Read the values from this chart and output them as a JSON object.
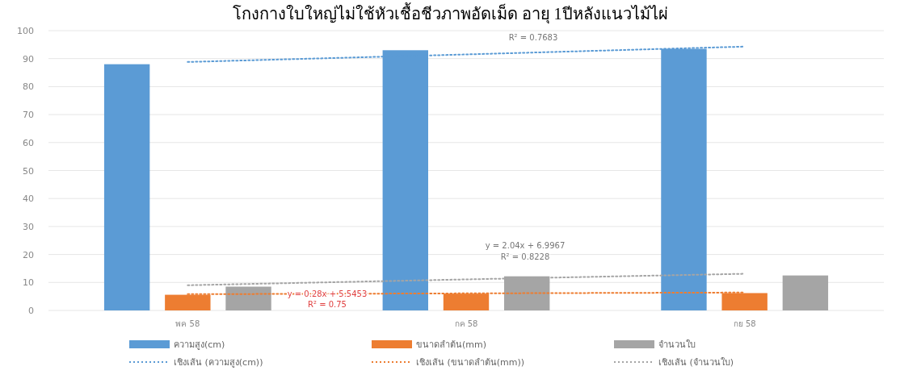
{
  "chart_data": {
    "type": "bar",
    "title": "โกงกางใบใหญ่ไม่ใช้หัวเชื้อชีวภาพอัดเม็ด อายุ 1ปีหลังแนวไม้ไผ่",
    "categories": [
      "พค 58",
      "กค 58",
      "กย 58"
    ],
    "series": [
      {
        "name": "ความสูง(cm)",
        "color": "#5b9bd5",
        "values": [
          88,
          93,
          93.5
        ]
      },
      {
        "name": "ขนาดลำต้น(mm)",
        "color": "#ed7d31",
        "values": [
          5.6,
          6,
          6.2
        ]
      },
      {
        "name": "จำนวนใบ",
        "color": "#a5a5a5",
        "values": [
          8.5,
          12.2,
          12.5
        ]
      },
      {
        "name": "เชิงเส้น (ความสูง(cm))",
        "type": "line",
        "line_style": "dotted",
        "color": "#5b9bd5",
        "values": [
          88.8,
          91.5,
          94.3
        ]
      },
      {
        "name": "เชิงเส้น (ขนาดลำต้น(mm))",
        "type": "line",
        "line_style": "dotted",
        "color": "#ed7d31",
        "values": [
          5.8,
          6.1,
          6.4
        ]
      },
      {
        "name": "เชิงเส้น (จำนวนใบ)",
        "type": "line",
        "line_style": "dotted",
        "color": "#a5a5a5",
        "values": [
          9,
          11.1,
          13.1
        ]
      }
    ],
    "annotations": [
      "R² = 0.7683",
      "y = 2.04x + 6.9967",
      "R² = 0.8228",
      "y = 0.28x + 5.5453",
      "R² = 0.75"
    ],
    "ylim": [
      0,
      100
    ],
    "yticks": [
      0,
      10,
      20,
      30,
      40,
      50,
      60,
      70,
      80,
      90,
      100
    ],
    "grid": "y",
    "legend": "bottom",
    "marker": "none"
  }
}
